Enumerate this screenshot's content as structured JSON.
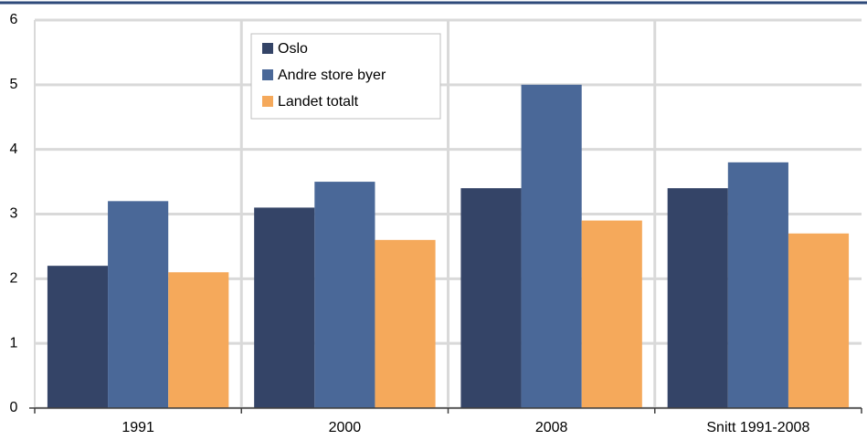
{
  "chart_data": {
    "type": "bar",
    "categories": [
      "1991",
      "2000",
      "2008",
      "Snitt 1991-2008"
    ],
    "series": [
      {
        "name": "Oslo",
        "color": "#344467",
        "values": [
          2.2,
          3.1,
          3.4,
          3.4
        ]
      },
      {
        "name": "Andre store byer",
        "color": "#4a6898",
        "values": [
          3.2,
          3.5,
          5.0,
          3.8
        ]
      },
      {
        "name": "Landet totalt",
        "color": "#f5a95b",
        "values": [
          2.1,
          2.6,
          2.9,
          2.7
        ]
      }
    ],
    "ylim": [
      0,
      6
    ],
    "yticks": [
      0,
      1,
      2,
      3,
      4,
      5,
      6
    ],
    "grid": true
  }
}
